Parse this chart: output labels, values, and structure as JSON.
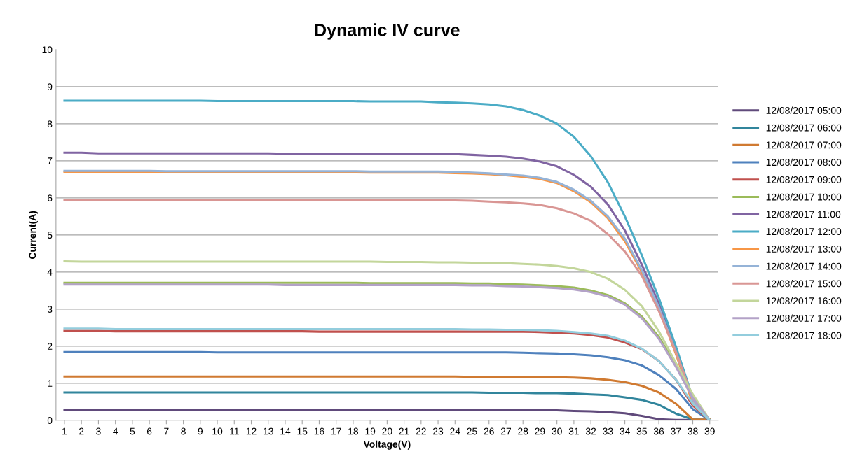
{
  "chart_data": {
    "type": "line",
    "title": "Dynamic IV curve",
    "xlabel": "Voltage(V)",
    "ylabel": "Current(A)",
    "categories": [
      "1",
      "2",
      "3",
      "4",
      "5",
      "6",
      "7",
      "8",
      "9",
      "10",
      "11",
      "12",
      "13",
      "14",
      "15",
      "16",
      "17",
      "18",
      "19",
      "20",
      "21",
      "22",
      "23",
      "24",
      "25",
      "26",
      "27",
      "28",
      "29",
      "30",
      "31",
      "32",
      "33",
      "34",
      "35",
      "36",
      "37",
      "38",
      "39"
    ],
    "ylim": [
      0,
      10
    ],
    "yticks": [
      0,
      1,
      2,
      3,
      4,
      5,
      6,
      7,
      8,
      9,
      10
    ],
    "grid": "y",
    "legend": "right",
    "marker": "none",
    "line_style": "solid",
    "series": [
      {
        "name": "12/08/2017 05:00",
        "color": "#604a7b",
        "values": [
          0.28,
          0.28,
          0.28,
          0.28,
          0.28,
          0.28,
          0.28,
          0.28,
          0.28,
          0.28,
          0.28,
          0.28,
          0.28,
          0.28,
          0.28,
          0.28,
          0.28,
          0.28,
          0.28,
          0.28,
          0.28,
          0.28,
          0.28,
          0.28,
          0.28,
          0.28,
          0.28,
          0.28,
          0.28,
          0.27,
          0.25,
          0.24,
          0.22,
          0.19,
          0.12,
          0.03,
          0.01,
          0.01,
          0.01
        ]
      },
      {
        "name": "12/08/2017 06:00",
        "color": "#31859c",
        "values": [
          0.75,
          0.75,
          0.75,
          0.75,
          0.75,
          0.75,
          0.75,
          0.75,
          0.75,
          0.75,
          0.75,
          0.75,
          0.75,
          0.75,
          0.75,
          0.75,
          0.75,
          0.75,
          0.75,
          0.75,
          0.75,
          0.75,
          0.75,
          0.75,
          0.75,
          0.74,
          0.74,
          0.74,
          0.73,
          0.73,
          0.72,
          0.7,
          0.68,
          0.62,
          0.55,
          0.42,
          0.18,
          0.02,
          0.02
        ]
      },
      {
        "name": "12/08/2017 07:00",
        "color": "#d07a31",
        "values": [
          1.18,
          1.18,
          1.18,
          1.18,
          1.18,
          1.18,
          1.18,
          1.18,
          1.18,
          1.18,
          1.18,
          1.18,
          1.18,
          1.18,
          1.18,
          1.18,
          1.18,
          1.18,
          1.18,
          1.18,
          1.18,
          1.18,
          1.18,
          1.18,
          1.17,
          1.17,
          1.17,
          1.17,
          1.17,
          1.16,
          1.15,
          1.13,
          1.09,
          1.03,
          0.93,
          0.75,
          0.45,
          0.02,
          0.02
        ]
      },
      {
        "name": "12/08/2017 08:00",
        "color": "#4f81bd",
        "values": [
          1.84,
          1.84,
          1.84,
          1.84,
          1.84,
          1.84,
          1.84,
          1.84,
          1.84,
          1.83,
          1.83,
          1.83,
          1.83,
          1.83,
          1.83,
          1.83,
          1.83,
          1.83,
          1.83,
          1.83,
          1.83,
          1.83,
          1.83,
          1.83,
          1.83,
          1.83,
          1.83,
          1.82,
          1.81,
          1.8,
          1.78,
          1.75,
          1.7,
          1.62,
          1.48,
          1.22,
          0.85,
          0.3,
          0
        ]
      },
      {
        "name": "12/08/2017 09:00",
        "color": "#c0504d",
        "values": [
          2.41,
          2.41,
          2.41,
          2.4,
          2.4,
          2.4,
          2.4,
          2.4,
          2.4,
          2.4,
          2.4,
          2.4,
          2.4,
          2.4,
          2.4,
          2.39,
          2.39,
          2.39,
          2.39,
          2.39,
          2.39,
          2.39,
          2.39,
          2.39,
          2.39,
          2.39,
          2.39,
          2.39,
          2.38,
          2.36,
          2.34,
          2.3,
          2.23,
          2.1,
          1.92,
          1.6,
          1.1,
          0.4,
          0
        ]
      },
      {
        "name": "12/08/2017 10:00",
        "color": "#9bbb59",
        "values": [
          3.71,
          3.71,
          3.71,
          3.71,
          3.71,
          3.71,
          3.71,
          3.71,
          3.71,
          3.71,
          3.71,
          3.71,
          3.71,
          3.71,
          3.71,
          3.71,
          3.71,
          3.71,
          3.7,
          3.7,
          3.7,
          3.7,
          3.7,
          3.7,
          3.69,
          3.69,
          3.67,
          3.66,
          3.64,
          3.62,
          3.58,
          3.5,
          3.38,
          3.16,
          2.8,
          2.25,
          1.5,
          0.65,
          0
        ]
      },
      {
        "name": "12/08/2017 11:00",
        "color": "#8064a2",
        "values": [
          7.22,
          7.22,
          7.2,
          7.2,
          7.2,
          7.2,
          7.2,
          7.2,
          7.2,
          7.2,
          7.2,
          7.2,
          7.2,
          7.19,
          7.19,
          7.19,
          7.19,
          7.19,
          7.19,
          7.19,
          7.19,
          7.18,
          7.18,
          7.18,
          7.16,
          7.14,
          7.11,
          7.06,
          6.98,
          6.85,
          6.62,
          6.3,
          5.82,
          5.12,
          4.2,
          3.15,
          1.9,
          0.55,
          0
        ]
      },
      {
        "name": "12/08/2017 12:00",
        "color": "#4bacc6",
        "values": [
          8.62,
          8.62,
          8.62,
          8.62,
          8.62,
          8.62,
          8.62,
          8.62,
          8.62,
          8.61,
          8.61,
          8.61,
          8.61,
          8.61,
          8.61,
          8.61,
          8.61,
          8.61,
          8.6,
          8.6,
          8.6,
          8.6,
          8.58,
          8.57,
          8.55,
          8.52,
          8.47,
          8.37,
          8.22,
          8.0,
          7.65,
          7.12,
          6.42,
          5.5,
          4.45,
          3.3,
          2.0,
          0.6,
          0
        ]
      },
      {
        "name": "12/08/2017 13:00",
        "color": "#f79646",
        "values": [
          6.7,
          6.7,
          6.7,
          6.7,
          6.7,
          6.7,
          6.69,
          6.69,
          6.69,
          6.69,
          6.69,
          6.69,
          6.69,
          6.69,
          6.69,
          6.69,
          6.69,
          6.69,
          6.68,
          6.68,
          6.68,
          6.68,
          6.68,
          6.67,
          6.66,
          6.64,
          6.61,
          6.57,
          6.51,
          6.4,
          6.18,
          5.88,
          5.45,
          4.83,
          4.0,
          3.0,
          1.8,
          0.45,
          0
        ]
      },
      {
        "name": "12/08/2017 14:00",
        "color": "#95b3d7",
        "values": [
          6.73,
          6.73,
          6.73,
          6.73,
          6.73,
          6.73,
          6.72,
          6.72,
          6.72,
          6.72,
          6.72,
          6.72,
          6.72,
          6.72,
          6.72,
          6.72,
          6.72,
          6.72,
          6.71,
          6.71,
          6.71,
          6.71,
          6.71,
          6.7,
          6.68,
          6.66,
          6.63,
          6.6,
          6.54,
          6.43,
          6.22,
          5.92,
          5.5,
          4.9,
          4.05,
          3.05,
          1.85,
          0.55,
          0
        ]
      },
      {
        "name": "12/08/2017 15:00",
        "color": "#d99694",
        "values": [
          5.95,
          5.95,
          5.95,
          5.95,
          5.95,
          5.95,
          5.95,
          5.95,
          5.95,
          5.95,
          5.95,
          5.94,
          5.94,
          5.94,
          5.94,
          5.94,
          5.94,
          5.94,
          5.94,
          5.94,
          5.94,
          5.94,
          5.93,
          5.93,
          5.92,
          5.9,
          5.88,
          5.85,
          5.81,
          5.72,
          5.58,
          5.38,
          5.02,
          4.55,
          3.9,
          2.95,
          1.85,
          0.6,
          0
        ]
      },
      {
        "name": "12/08/2017 16:00",
        "color": "#c3d69b",
        "values": [
          4.29,
          4.28,
          4.28,
          4.28,
          4.28,
          4.28,
          4.28,
          4.28,
          4.28,
          4.28,
          4.28,
          4.28,
          4.28,
          4.28,
          4.28,
          4.28,
          4.28,
          4.28,
          4.28,
          4.27,
          4.27,
          4.27,
          4.26,
          4.26,
          4.25,
          4.25,
          4.24,
          4.22,
          4.2,
          4.16,
          4.1,
          4.0,
          3.82,
          3.52,
          3.08,
          2.4,
          1.55,
          0.7,
          0
        ]
      },
      {
        "name": "12/08/2017 17:00",
        "color": "#b3a2c7",
        "values": [
          3.66,
          3.66,
          3.66,
          3.66,
          3.66,
          3.66,
          3.66,
          3.66,
          3.66,
          3.66,
          3.66,
          3.66,
          3.66,
          3.65,
          3.65,
          3.65,
          3.65,
          3.65,
          3.65,
          3.65,
          3.65,
          3.65,
          3.65,
          3.65,
          3.64,
          3.64,
          3.62,
          3.61,
          3.59,
          3.57,
          3.53,
          3.46,
          3.34,
          3.12,
          2.75,
          2.2,
          1.45,
          0.6,
          0
        ]
      },
      {
        "name": "12/08/2017 18:00",
        "color": "#93cddd",
        "values": [
          2.47,
          2.47,
          2.47,
          2.46,
          2.46,
          2.46,
          2.46,
          2.46,
          2.46,
          2.46,
          2.46,
          2.46,
          2.46,
          2.46,
          2.46,
          2.46,
          2.46,
          2.46,
          2.46,
          2.46,
          2.46,
          2.46,
          2.46,
          2.46,
          2.45,
          2.45,
          2.44,
          2.44,
          2.43,
          2.41,
          2.38,
          2.34,
          2.28,
          2.15,
          1.93,
          1.6,
          1.1,
          0.45,
          0
        ]
      }
    ]
  }
}
